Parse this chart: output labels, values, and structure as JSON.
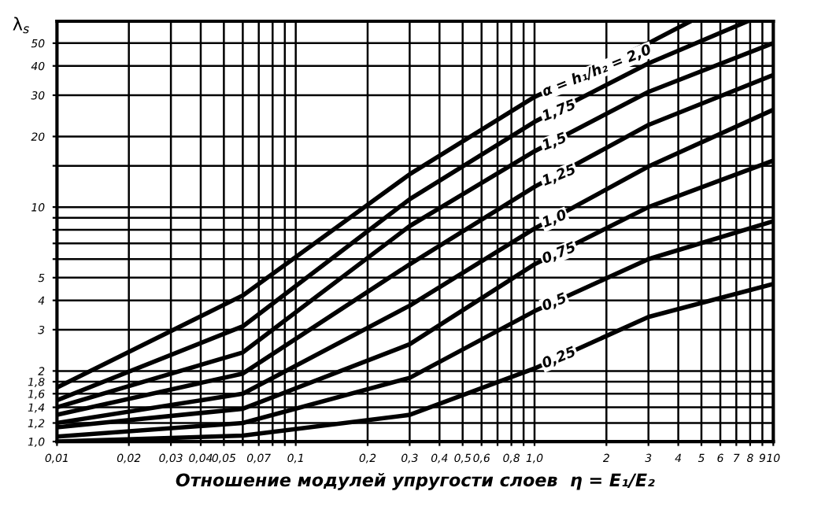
{
  "chart_data": {
    "type": "line",
    "xlabel": "Отношение модулей упругости слоев  η = E₁/E₂",
    "ylabel": "λ$_{s}$",
    "log": "xy",
    "grid": true,
    "legend": false,
    "marker": "none",
    "line_style": "solid",
    "xlim": [
      0.01,
      10
    ],
    "ylim": [
      1,
      62
    ],
    "xticks": [
      {
        "value": 0.01,
        "label": "0,01"
      },
      {
        "value": 0.02,
        "label": "0,02"
      },
      {
        "value": 0.03,
        "label": "0,03"
      },
      {
        "value": 0.04,
        "label": "0,04"
      },
      {
        "value": 0.05,
        "label": "0,05"
      },
      {
        "value": 0.06,
        "label": null
      },
      {
        "value": 0.07,
        "label": "0,07"
      },
      {
        "value": 0.08,
        "label": null
      },
      {
        "value": 0.09,
        "label": null
      },
      {
        "value": 0.1,
        "label": "0,1"
      },
      {
        "value": 0.2,
        "label": "0,2"
      },
      {
        "value": 0.3,
        "label": "0,3"
      },
      {
        "value": 0.4,
        "label": "0,4"
      },
      {
        "value": 0.5,
        "label": "0,5"
      },
      {
        "value": 0.6,
        "label": "0,6"
      },
      {
        "value": 0.7,
        "label": null
      },
      {
        "value": 0.8,
        "label": "0,8"
      },
      {
        "value": 0.9,
        "label": null
      },
      {
        "value": 1,
        "label": "1,0"
      },
      2,
      3,
      4,
      5,
      6,
      7,
      8,
      9,
      10
    ],
    "yticks": [
      {
        "value": 1,
        "label": "1,0"
      },
      {
        "value": 1.2,
        "label": "1,2"
      },
      {
        "value": 1.4,
        "label": "1,4"
      },
      {
        "value": 1.6,
        "label": "1,6"
      },
      {
        "value": 1.8,
        "label": "1,8"
      },
      2,
      3,
      4,
      5,
      {
        "value": 6,
        "label": null
      },
      {
        "value": 7,
        "label": null
      },
      {
        "value": 8,
        "label": null
      },
      {
        "value": 9,
        "label": null
      },
      10,
      {
        "value": 15,
        "label": null
      },
      20,
      30,
      40,
      50
    ],
    "series": [
      {
        "name": "α = h₁/h₂ = 2,0",
        "color": "#000000",
        "x": [
          0.01,
          0.06,
          0.3,
          1,
          3,
          4.5
        ],
        "values": [
          1.7,
          4.2,
          13.8,
          29.5,
          50,
          62
        ]
      },
      {
        "name": "1,75",
        "color": "#000000",
        "x": [
          0.01,
          0.06,
          0.3,
          1,
          3,
          7.8
        ],
        "values": [
          1.5,
          3.1,
          10.8,
          23.1,
          41,
          62
        ]
      },
      {
        "name": "1,5",
        "color": "#000000",
        "x": [
          0.01,
          0.06,
          0.3,
          1,
          3,
          10
        ],
        "values": [
          1.4,
          2.4,
          8.3,
          17.3,
          31,
          50
        ]
      },
      {
        "name": "1,25",
        "color": "#000000",
        "x": [
          0.01,
          0.06,
          0.3,
          1,
          3,
          10
        ],
        "values": [
          1.3,
          1.95,
          5.7,
          12.2,
          22.4,
          36.6
        ]
      },
      {
        "name": "1,0",
        "color": "#000000",
        "x": [
          0.01,
          0.06,
          0.3,
          1,
          3,
          10
        ],
        "values": [
          1.2,
          1.6,
          3.8,
          8.1,
          14.9,
          26
        ]
      },
      {
        "name": "0,75",
        "color": "#000000",
        "x": [
          0.01,
          0.06,
          0.3,
          1,
          3,
          10
        ],
        "values": [
          1.15,
          1.38,
          2.6,
          5.7,
          10,
          15.8
        ]
      },
      {
        "name": "0,5",
        "color": "#000000",
        "x": [
          0.01,
          0.06,
          0.3,
          1,
          3,
          10
        ],
        "values": [
          1.05,
          1.2,
          1.87,
          3.6,
          6,
          8.7
        ]
      },
      {
        "name": "0,25",
        "color": "#000000",
        "x": [
          0.01,
          0.06,
          0.3,
          1,
          3,
          10
        ],
        "values": [
          1.0,
          1.06,
          1.3,
          2.05,
          3.4,
          4.7
        ]
      }
    ]
  }
}
